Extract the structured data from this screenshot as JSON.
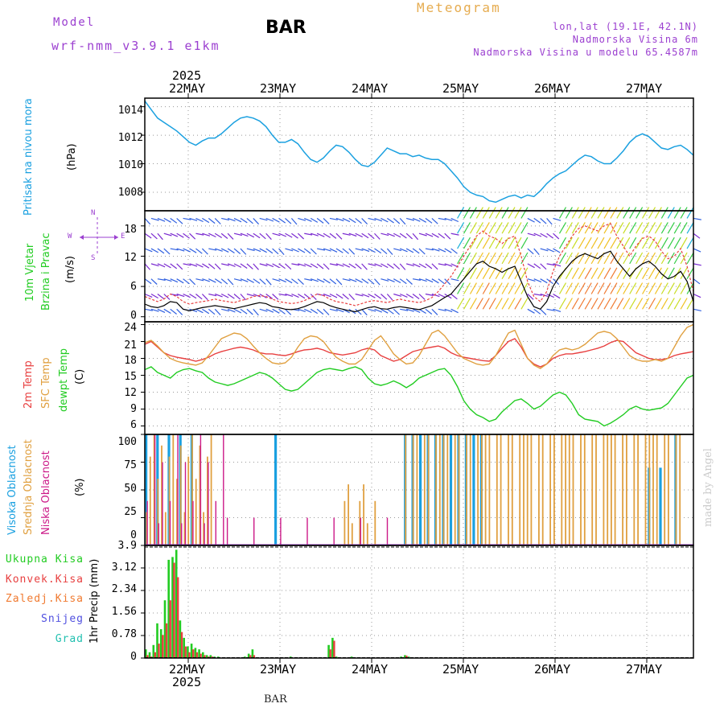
{
  "header": {
    "model_label": "Model",
    "model_name": "wrf-nmm_v3.9.1 e1km",
    "station": "BAR",
    "title": "Meteogram",
    "coords": "lon,lat (19.1E, 42.1N)",
    "elevation": "Nadmorska Visina 6m",
    "model_elevation": "Nadmorska Visina u modelu 65.4587m"
  },
  "footer": {
    "station": "BAR",
    "signature": "made by Angel"
  },
  "colors": {
    "pressure": "#1aa0e0",
    "temp2m": "#e84040",
    "sfc": "#e0a040",
    "dew": "#22cc22",
    "high": "#1aa0e0",
    "mid": "#e0a040",
    "low": "#cc1a88",
    "total": "#22cc22",
    "conv": "#e84040",
    "frozen": "#f07a30",
    "snow": "#5050e0",
    "hail": "#22c0b0",
    "black": "#000000"
  },
  "time_axis": {
    "year": "2025",
    "dates": [
      "22MAY",
      "23MAY",
      "24MAY",
      "25MAY",
      "26MAY",
      "27MAY"
    ]
  },
  "chart_data": [
    {
      "type": "line",
      "ylabel_color": "Pritisak na nivou mora",
      "ylabel_unit": "(hPa)",
      "yticks": [
        "1014",
        "1012",
        "1010",
        "1008"
      ],
      "ylim": [
        1006.7,
        1014.6
      ],
      "series": [
        {
          "values": [
            1014.4,
            1013.8,
            1013.2,
            1012.9,
            1012.6,
            1012.3,
            1011.9,
            1011.5,
            1011.3,
            1011.6,
            1011.8,
            1011.8,
            1012.1,
            1012.5,
            1012.9,
            1013.2,
            1013.3,
            1013.2,
            1013.0,
            1012.6,
            1012.0,
            1011.5,
            1011.5,
            1011.7,
            1011.4,
            1010.8,
            1010.3,
            1010.1,
            1010.4,
            1010.9,
            1011.3,
            1011.2,
            1010.8,
            1010.3,
            1009.9,
            1009.8,
            1010.1,
            1010.6,
            1011.1,
            1010.9,
            1010.7,
            1010.7,
            1010.5,
            1010.6,
            1010.4,
            1010.3,
            1010.3,
            1010.0,
            1009.5,
            1009.0,
            1008.4,
            1008.0,
            1007.8,
            1007.7,
            1007.4,
            1007.3,
            1007.5,
            1007.7,
            1007.8,
            1007.6,
            1007.8,
            1007.7,
            1008.1,
            1008.6,
            1009.0,
            1009.3,
            1009.5,
            1009.9,
            1010.3,
            1010.6,
            1010.5,
            1010.2,
            1010.0,
            1010.0,
            1010.4,
            1010.9,
            1011.5,
            1011.9,
            1012.1,
            1011.9,
            1011.5,
            1011.1,
            1011.0,
            1011.2,
            1011.3,
            1011.0,
            1010.6
          ]
        }
      ]
    },
    {
      "type": "line",
      "ylabel_color": "10m Vjetar",
      "ylabel_color2": "Brzina i Pravac",
      "ylabel_unit": "(m/s)",
      "compass": {
        "n": "N",
        "s": "S",
        "e": "E",
        "w": "W"
      },
      "yticks": [
        "18",
        "12",
        "6",
        "0"
      ],
      "ylim": [
        -1,
        21
      ],
      "series": [
        {
          "name": "speed",
          "values": [
            2.5,
            2.0,
            1.8,
            2.2,
            3.0,
            2.8,
            1.5,
            1.2,
            1.5,
            1.8,
            2.0,
            2.2,
            2.0,
            1.8,
            1.6,
            1.9,
            2.2,
            2.5,
            2.8,
            2.6,
            2.0,
            1.8,
            1.5,
            1.4,
            1.6,
            2.0,
            2.5,
            3.0,
            2.8,
            2.2,
            1.8,
            1.5,
            1.2,
            1.0,
            1.4,
            1.8,
            2.0,
            1.6,
            1.5,
            1.8,
            2.0,
            1.8,
            1.6,
            1.4,
            1.8,
            2.2,
            3.0,
            3.8,
            4.5,
            6.0,
            7.5,
            9.0,
            10.5,
            11.0,
            10.0,
            9.5,
            8.8,
            9.5,
            10.0,
            7.0,
            4.0,
            2.0,
            1.5,
            3.0,
            6.0,
            8.0,
            9.5,
            11.0,
            12.0,
            12.5,
            12.0,
            11.5,
            12.5,
            13.0,
            11.0,
            9.5,
            8.0,
            9.5,
            10.5,
            11.0,
            10.0,
            8.5,
            7.5,
            8.0,
            9.0,
            7.0,
            3.0
          ]
        },
        {
          "name": "gust",
          "values": [
            4.0,
            3.5,
            3.0,
            3.5,
            4.5,
            4.0,
            3.0,
            2.5,
            2.8,
            3.0,
            3.2,
            3.5,
            3.2,
            3.0,
            2.8,
            3.2,
            3.5,
            4.0,
            4.2,
            4.0,
            3.5,
            3.0,
            2.8,
            2.6,
            2.8,
            3.2,
            3.8,
            4.5,
            4.2,
            3.5,
            3.0,
            2.8,
            2.5,
            2.2,
            2.6,
            3.0,
            3.2,
            3.0,
            2.8,
            3.2,
            3.5,
            3.2,
            3.0,
            2.8,
            3.2,
            3.8,
            5.0,
            6.5,
            8.0,
            10.0,
            12.0,
            14.0,
            16.0,
            17.0,
            16.0,
            15.5,
            14.5,
            15.5,
            16.0,
            12.0,
            7.0,
            4.0,
            3.0,
            5.0,
            9.0,
            12.0,
            14.0,
            16.0,
            17.5,
            18.0,
            17.5,
            17.0,
            18.0,
            18.5,
            16.0,
            14.0,
            12.0,
            14.0,
            15.5,
            16.0,
            15.0,
            13.0,
            11.5,
            12.0,
            13.5,
            10.0,
            5.0
          ]
        }
      ]
    },
    {
      "type": "line",
      "ylabel_colors": [
        "2m Temp",
        "SFC Temp",
        "dewpt Temp"
      ],
      "ylabel_unit": "(C)",
      "yticks": [
        "24",
        "21",
        "18",
        "15",
        "12",
        "9",
        "6"
      ],
      "ylim": [
        4.5,
        24.5
      ],
      "series": [
        {
          "name": "2m",
          "values": [
            20.5,
            21.0,
            20.0,
            19.0,
            18.5,
            18.2,
            18.0,
            17.8,
            17.5,
            17.8,
            18.2,
            18.8,
            19.2,
            19.5,
            19.8,
            20.0,
            19.8,
            19.5,
            19.0,
            18.8,
            18.8,
            18.6,
            18.5,
            18.8,
            19.2,
            19.5,
            19.6,
            19.8,
            19.5,
            19.0,
            18.8,
            18.6,
            18.8,
            19.0,
            19.5,
            19.8,
            19.5,
            18.5,
            18.0,
            17.5,
            17.8,
            18.5,
            19.2,
            19.5,
            19.8,
            20.0,
            20.2,
            19.8,
            19.0,
            18.5,
            18.2,
            18.0,
            17.8,
            17.6,
            17.5,
            18.5,
            19.8,
            21.0,
            21.5,
            20.0,
            18.0,
            17.0,
            16.5,
            17.0,
            18.0,
            18.5,
            18.8,
            18.8,
            19.0,
            19.2,
            19.5,
            19.8,
            20.2,
            20.8,
            21.2,
            21.0,
            20.0,
            19.0,
            18.5,
            18.0,
            17.8,
            17.8,
            18.0,
            18.5,
            18.8,
            19.0,
            19.2
          ]
        },
        {
          "name": "sfc",
          "values": [
            20.8,
            21.2,
            20.2,
            19.0,
            18.0,
            17.5,
            17.2,
            17.0,
            16.8,
            17.2,
            18.5,
            20.0,
            21.5,
            22.0,
            22.5,
            22.3,
            21.5,
            20.2,
            19.0,
            18.0,
            17.2,
            17.0,
            17.2,
            18.2,
            20.0,
            21.5,
            22.0,
            21.8,
            21.0,
            19.5,
            18.2,
            17.5,
            17.0,
            17.0,
            17.8,
            19.5,
            21.2,
            22.0,
            20.5,
            18.8,
            17.8,
            17.0,
            17.2,
            18.5,
            20.5,
            22.5,
            23.0,
            22.0,
            20.5,
            19.0,
            18.0,
            17.5,
            17.0,
            16.8,
            17.0,
            18.5,
            20.5,
            22.5,
            23.0,
            20.5,
            18.0,
            16.8,
            16.2,
            17.0,
            18.5,
            19.5,
            19.8,
            19.5,
            19.8,
            20.5,
            21.5,
            22.5,
            22.8,
            22.5,
            21.5,
            20.0,
            18.5,
            17.8,
            17.5,
            17.5,
            17.8,
            17.5,
            18.0,
            20.0,
            22.0,
            23.5,
            24.0
          ]
        },
        {
          "name": "dew",
          "values": [
            16.0,
            16.5,
            15.5,
            15.0,
            14.5,
            15.5,
            16.0,
            16.2,
            15.8,
            15.5,
            14.5,
            13.8,
            13.5,
            13.2,
            13.5,
            14.0,
            14.5,
            15.0,
            15.5,
            15.2,
            14.5,
            13.5,
            12.5,
            12.2,
            12.5,
            13.5,
            14.5,
            15.5,
            16.0,
            16.2,
            16.0,
            15.8,
            16.2,
            16.5,
            16.0,
            14.5,
            13.5,
            13.2,
            13.5,
            14.0,
            13.5,
            12.8,
            13.5,
            14.5,
            15.0,
            15.5,
            16.0,
            16.2,
            15.0,
            13.0,
            10.5,
            9.0,
            8.0,
            7.5,
            6.8,
            7.2,
            8.5,
            9.5,
            10.5,
            10.8,
            10.0,
            9.0,
            9.5,
            10.5,
            11.5,
            12.0,
            11.5,
            10.0,
            8.0,
            7.2,
            7.0,
            6.8,
            6.0,
            6.5,
            7.2,
            8.0,
            9.0,
            9.5,
            9.0,
            8.8,
            9.0,
            9.2,
            10.0,
            11.5,
            13.0,
            14.5,
            15.0
          ]
        }
      ]
    },
    {
      "type": "bar",
      "ylabel_colors": [
        "Visoka Oblacnost",
        "Srednja Oblacnost",
        "Niska Oblacnost"
      ],
      "ylabel_unit": "(%)",
      "yticks": [
        "100",
        "75",
        "50",
        "25",
        "0"
      ],
      "ylim": [
        0,
        100
      ]
    },
    {
      "type": "bar",
      "legend": [
        "Ukupna Kisa",
        "Konvek.Kisa",
        "Zaledj.Kisa",
        "Snijeg",
        "Grad"
      ],
      "ylabel_unit": "1hr Precip (mm)",
      "yticks": [
        "3.9",
        "3.12",
        "2.34",
        "1.56",
        "0.78",
        "0"
      ],
      "ylim": [
        0,
        3.9
      ],
      "series": [
        {
          "name": "Ukupna Kisa",
          "values": [
            0.3,
            0.2,
            0.45,
            1.2,
            1.0,
            2.0,
            3.4,
            3.5,
            3.75,
            1.3,
            0.7,
            0.4,
            0.5,
            0.35,
            0.3,
            0.2,
            0.1,
            0.1,
            0.05,
            0.05,
            0,
            0,
            0,
            0,
            0,
            0,
            0.05,
            0.15,
            0.3,
            0,
            0,
            0,
            0,
            0,
            0,
            0,
            0,
            0,
            0.05,
            0,
            0,
            0,
            0,
            0,
            0,
            0,
            0,
            0,
            0.45,
            0.7,
            0.05,
            0,
            0,
            0,
            0.05,
            0,
            0,
            0,
            0,
            0,
            0,
            0,
            0,
            0,
            0,
            0,
            0,
            0.05,
            0.1,
            0.05,
            0,
            0,
            0,
            0,
            0,
            0,
            0,
            0,
            0,
            0,
            0,
            0,
            0,
            0,
            0,
            0,
            0,
            0,
            0,
            0,
            0,
            0,
            0,
            0,
            0,
            0,
            0,
            0,
            0,
            0,
            0,
            0,
            0,
            0,
            0,
            0,
            0,
            0,
            0,
            0,
            0,
            0,
            0,
            0,
            0,
            0,
            0,
            0,
            0,
            0,
            0,
            0,
            0,
            0,
            0,
            0,
            0,
            0,
            0,
            0,
            0,
            0,
            0,
            0,
            0,
            0,
            0,
            0,
            0,
            0,
            0,
            0,
            0,
            0
          ]
        },
        {
          "name": "Konvek.Kisa",
          "values": [
            0.1,
            0.05,
            0.2,
            0.5,
            0.8,
            1.2,
            2.0,
            3.3,
            2.8,
            0.9,
            0.4,
            0.2,
            0.3,
            0.2,
            0.15,
            0.1,
            0.05,
            0.05,
            0,
            0,
            0,
            0,
            0,
            0,
            0,
            0,
            0,
            0.1,
            0.1,
            0,
            0,
            0,
            0,
            0,
            0,
            0,
            0,
            0,
            0,
            0,
            0,
            0,
            0,
            0,
            0,
            0,
            0,
            0,
            0.3,
            0.6,
            0,
            0,
            0,
            0,
            0,
            0,
            0,
            0,
            0,
            0,
            0,
            0,
            0,
            0,
            0,
            0,
            0,
            0,
            0.08,
            0,
            0,
            0,
            0,
            0,
            0,
            0,
            0,
            0,
            0,
            0,
            0,
            0,
            0,
            0,
            0,
            0,
            0,
            0,
            0,
            0,
            0,
            0,
            0,
            0,
            0,
            0,
            0,
            0,
            0,
            0,
            0,
            0,
            0,
            0,
            0,
            0,
            0,
            0,
            0,
            0,
            0,
            0,
            0,
            0,
            0,
            0,
            0,
            0,
            0,
            0,
            0,
            0,
            0,
            0,
            0,
            0,
            0,
            0,
            0,
            0,
            0,
            0,
            0,
            0,
            0,
            0,
            0,
            0,
            0,
            0,
            0,
            0,
            0,
            0,
            0,
            0
          ]
        }
      ]
    }
  ]
}
